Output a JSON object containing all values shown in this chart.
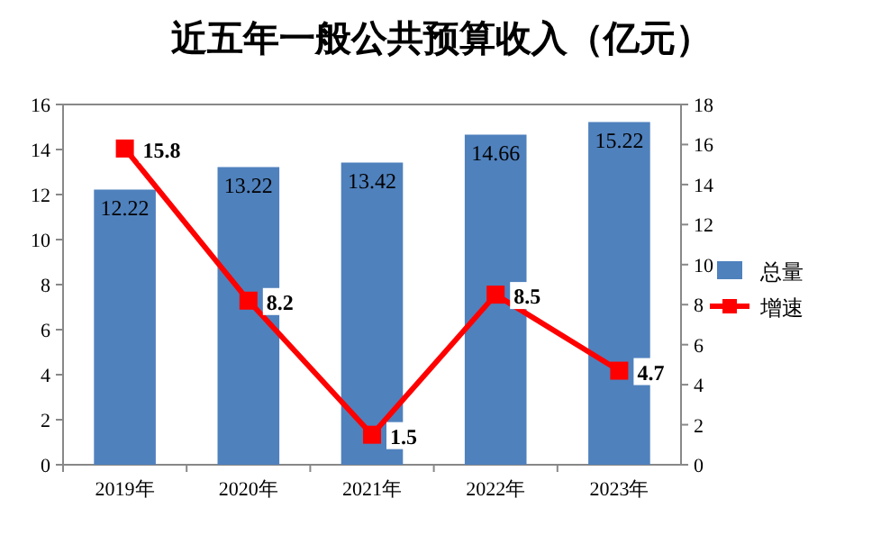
{
  "chart_data": {
    "type": "bar",
    "title": "近五年一般公共预算收入（亿元）",
    "categories": [
      "2019年",
      "2020年",
      "2021年",
      "2022年",
      "2023年"
    ],
    "series": [
      {
        "name": "总量",
        "color": "#4f81bd",
        "values": [
          12.22,
          13.22,
          13.42,
          14.66,
          15.22
        ]
      },
      {
        "name": "增速",
        "type": "line",
        "axis": "y2",
        "color": "#ff0000",
        "marker": "square",
        "values": [
          15.8,
          8.2,
          1.5,
          8.5,
          4.7
        ]
      }
    ],
    "ylim": [
      0,
      16
    ],
    "yticks": [
      0,
      2,
      4,
      6,
      8,
      10,
      12,
      14,
      16
    ],
    "y2lim": [
      0,
      18
    ],
    "y2ticks": [
      0,
      2,
      4,
      6,
      8,
      10,
      12,
      14,
      16,
      18
    ],
    "data_labels": true,
    "legend": "right",
    "grid": false
  }
}
